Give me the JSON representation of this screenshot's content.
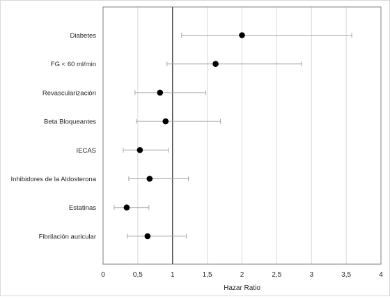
{
  "chart_data": {
    "type": "scatter",
    "title": "",
    "xlabel": "Hazar Ratio",
    "ylabel": "",
    "xlim": [
      0,
      4
    ],
    "xticks": [
      0,
      0.5,
      1,
      1.5,
      2,
      2.5,
      3,
      3.5,
      4
    ],
    "xtick_labels": [
      "0",
      "0,5",
      "1",
      "1,5",
      "2",
      "2,5",
      "3",
      "3,5",
      "4"
    ],
    "reference_line": 1,
    "grid": "vertical",
    "categories": [
      "Diabetes",
      "FG < 60 ml/min",
      "Revascularización",
      "Beta Bloqueantes",
      "IECAS",
      "Inhibidores de la Aldosterona",
      "Estatinas",
      "Fibrilación auricular"
    ],
    "series": [
      {
        "hr": [
          2.0,
          1.62,
          0.82,
          0.9,
          0.53,
          0.67,
          0.34,
          0.64
        ],
        "ci_low": [
          1.13,
          0.92,
          0.46,
          0.48,
          0.29,
          0.37,
          0.16,
          0.35
        ],
        "ci_high": [
          3.58,
          2.86,
          1.48,
          1.69,
          0.94,
          1.23,
          0.66,
          1.2
        ]
      }
    ],
    "colors": {
      "point": "#000000",
      "whisker": "#a6a6a6",
      "grid": "#d9d9d9",
      "axis": "#7f7f7f",
      "refline": "#404040",
      "text": "#262626"
    }
  }
}
